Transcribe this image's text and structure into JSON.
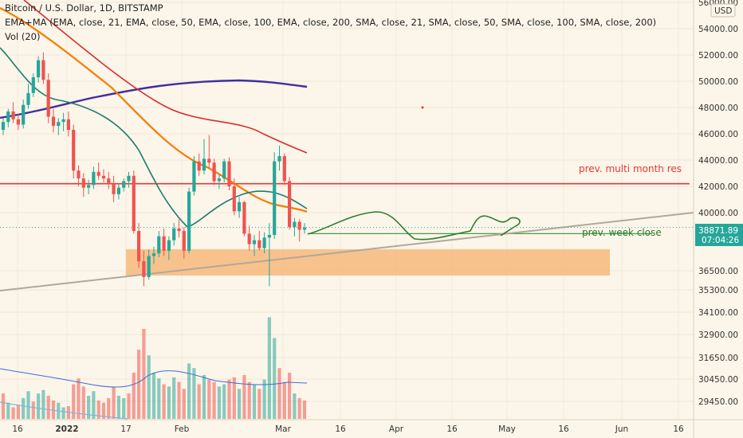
{
  "legend": {
    "title": "Bitcoin / U.S. Dollar, 1D, BITSTAMP",
    "indicators": "EMA+MA (EMA, close, 21, EMA, close, 50, EMA, close, 100, EMA, close, 200, SMA, close, 21, SMA, close, 50, SMA, close, 100, SMA, close, 200)",
    "volume": "Vol (20)"
  },
  "colors": {
    "background": "#fcf5e9",
    "up": "#26a69a",
    "down": "#ef5350",
    "ema21": "#1b7d6f",
    "ema50": "#f57c00",
    "ema100": "#d32f2f",
    "ema200": "#3f2f9f",
    "resistance": "#e53935",
    "trend": "#b0a89c",
    "zone": "#f7b97c",
    "projection": "#2e7d32",
    "current_price_bg": "#26a69a"
  },
  "chart_data": {
    "type": "candlestick",
    "currency_badge": "USD",
    "price_axis_labels": [
      "56000.00",
      "54000.00",
      "52000.00",
      "50000.00",
      "48000.00",
      "46000.00",
      "44000.00",
      "42000.00",
      "40000.00",
      "36500.00",
      "35300.00",
      "34100.00",
      "32900.00",
      "31650.00",
      "30450.00",
      "29450.00"
    ],
    "time_axis_labels": [
      "16",
      "2022",
      "17",
      "Feb",
      "Mar",
      "16",
      "Apr",
      "16",
      "May",
      "16",
      "Jun",
      "16"
    ],
    "current_price": "38871.89",
    "countdown": "07:04:26",
    "annotations": {
      "resistance_label": "prev. multi month res",
      "resistance_price": 42200,
      "week_close_label": "prev. week close",
      "week_close_price": 38400,
      "demand_zone": {
        "top": 37800,
        "bottom": 36300
      }
    },
    "candles": [
      [
        46300,
        47200,
        45900,
        46900
      ],
      [
        46900,
        47900,
        46500,
        47700
      ],
      [
        47700,
        48400,
        46800,
        47100
      ],
      [
        47100,
        47500,
        46300,
        46700
      ],
      [
        46700,
        48600,
        46400,
        48200
      ],
      [
        48200,
        49800,
        47900,
        49100
      ],
      [
        49100,
        50600,
        48800,
        50300
      ],
      [
        50300,
        51900,
        49900,
        51600
      ],
      [
        51600,
        52200,
        49800,
        50100
      ],
      [
        50100,
        50600,
        46800,
        47300
      ],
      [
        47300,
        47900,
        46100,
        46600
      ],
      [
        46600,
        47200,
        45900,
        46900
      ],
      [
        46900,
        47600,
        46200,
        47100
      ],
      [
        47100,
        47700,
        45800,
        46300
      ],
      [
        46300,
        46700,
        42600,
        43200
      ],
      [
        43200,
        43600,
        42000,
        42600
      ],
      [
        42600,
        43000,
        41200,
        41900
      ],
      [
        41900,
        42500,
        41400,
        42100
      ],
      [
        42100,
        43500,
        41800,
        43100
      ],
      [
        43100,
        43800,
        42500,
        42800
      ],
      [
        42800,
        43300,
        42300,
        42600
      ],
      [
        42600,
        43100,
        41800,
        42200
      ],
      [
        42200,
        42800,
        40800,
        41400
      ],
      [
        41400,
        42200,
        41000,
        41900
      ],
      [
        41900,
        42600,
        41600,
        42400
      ],
      [
        42400,
        43100,
        41900,
        42800
      ],
      [
        42800,
        43200,
        38400,
        38600
      ],
      [
        38600,
        39200,
        35800,
        36300
      ],
      [
        36300,
        37100,
        34400,
        35100
      ],
      [
        35100,
        37200,
        34900,
        36700
      ],
      [
        36700,
        37400,
        36100,
        36900
      ],
      [
        36900,
        38600,
        36600,
        38200
      ],
      [
        38200,
        38800,
        36700,
        37100
      ],
      [
        37100,
        38200,
        36400,
        37900
      ],
      [
        37900,
        39200,
        37500,
        38800
      ],
      [
        38800,
        39500,
        38100,
        38600
      ],
      [
        38600,
        38900,
        36500,
        37100
      ],
      [
        37100,
        41900,
        36900,
        41600
      ],
      [
        41600,
        44300,
        41300,
        43900
      ],
      [
        43900,
        44500,
        42800,
        43200
      ],
      [
        43200,
        45600,
        42900,
        44100
      ],
      [
        44100,
        45900,
        43400,
        43800
      ],
      [
        43800,
        44100,
        42100,
        42400
      ],
      [
        42400,
        42900,
        41800,
        42600
      ],
      [
        42600,
        44100,
        42300,
        43900
      ],
      [
        43900,
        44200,
        41700,
        42000
      ],
      [
        42000,
        42600,
        39800,
        40100
      ],
      [
        40100,
        41200,
        39600,
        40800
      ],
      [
        40800,
        40900,
        38200,
        38400
      ],
      [
        38400,
        39000,
        37100,
        37600
      ],
      [
        37600,
        38300,
        36700,
        37900
      ],
      [
        37900,
        38600,
        37100,
        37300
      ],
      [
        37300,
        38500,
        36900,
        38100
      ],
      [
        38100,
        39200,
        34400,
        38300
      ],
      [
        38300,
        44600,
        38000,
        43900
      ],
      [
        43900,
        45100,
        43200,
        44300
      ],
      [
        44300,
        44500,
        42100,
        42400
      ],
      [
        42400,
        42700,
        38700,
        38900
      ],
      [
        38900,
        39600,
        38200,
        39300
      ],
      [
        39300,
        39500,
        37800,
        38700
      ],
      [
        38700,
        39200,
        38400,
        38871.89
      ]
    ],
    "volumes": [
      [
        22,
        0
      ],
      [
        14,
        1
      ],
      [
        10,
        0
      ],
      [
        12,
        0
      ],
      [
        18,
        1
      ],
      [
        24,
        1
      ],
      [
        15,
        0
      ],
      [
        22,
        1
      ],
      [
        25,
        1
      ],
      [
        20,
        0
      ],
      [
        16,
        0
      ],
      [
        14,
        1
      ],
      [
        10,
        1
      ],
      [
        11,
        0
      ],
      [
        30,
        0
      ],
      [
        35,
        0
      ],
      [
        28,
        0
      ],
      [
        20,
        1
      ],
      [
        24,
        1
      ],
      [
        16,
        0
      ],
      [
        14,
        0
      ],
      [
        18,
        0
      ],
      [
        28,
        0
      ],
      [
        20,
        1
      ],
      [
        18,
        1
      ],
      [
        22,
        0
      ],
      [
        40,
        0
      ],
      [
        60,
        0
      ],
      [
        78,
        0
      ],
      [
        55,
        1
      ],
      [
        40,
        1
      ],
      [
        35,
        1
      ],
      [
        30,
        0
      ],
      [
        28,
        1
      ],
      [
        36,
        1
      ],
      [
        32,
        0
      ],
      [
        26,
        0
      ],
      [
        48,
        1
      ],
      [
        44,
        1
      ],
      [
        30,
        0
      ],
      [
        38,
        1
      ],
      [
        34,
        0
      ],
      [
        32,
        0
      ],
      [
        28,
        1
      ],
      [
        30,
        1
      ],
      [
        34,
        0
      ],
      [
        36,
        0
      ],
      [
        26,
        1
      ],
      [
        38,
        0
      ],
      [
        32,
        0
      ],
      [
        30,
        1
      ],
      [
        26,
        0
      ],
      [
        34,
        1
      ],
      [
        88,
        1
      ],
      [
        70,
        1
      ],
      [
        44,
        0
      ],
      [
        32,
        0
      ],
      [
        40,
        0
      ],
      [
        22,
        1
      ],
      [
        18,
        0
      ],
      [
        16,
        0
      ]
    ]
  }
}
